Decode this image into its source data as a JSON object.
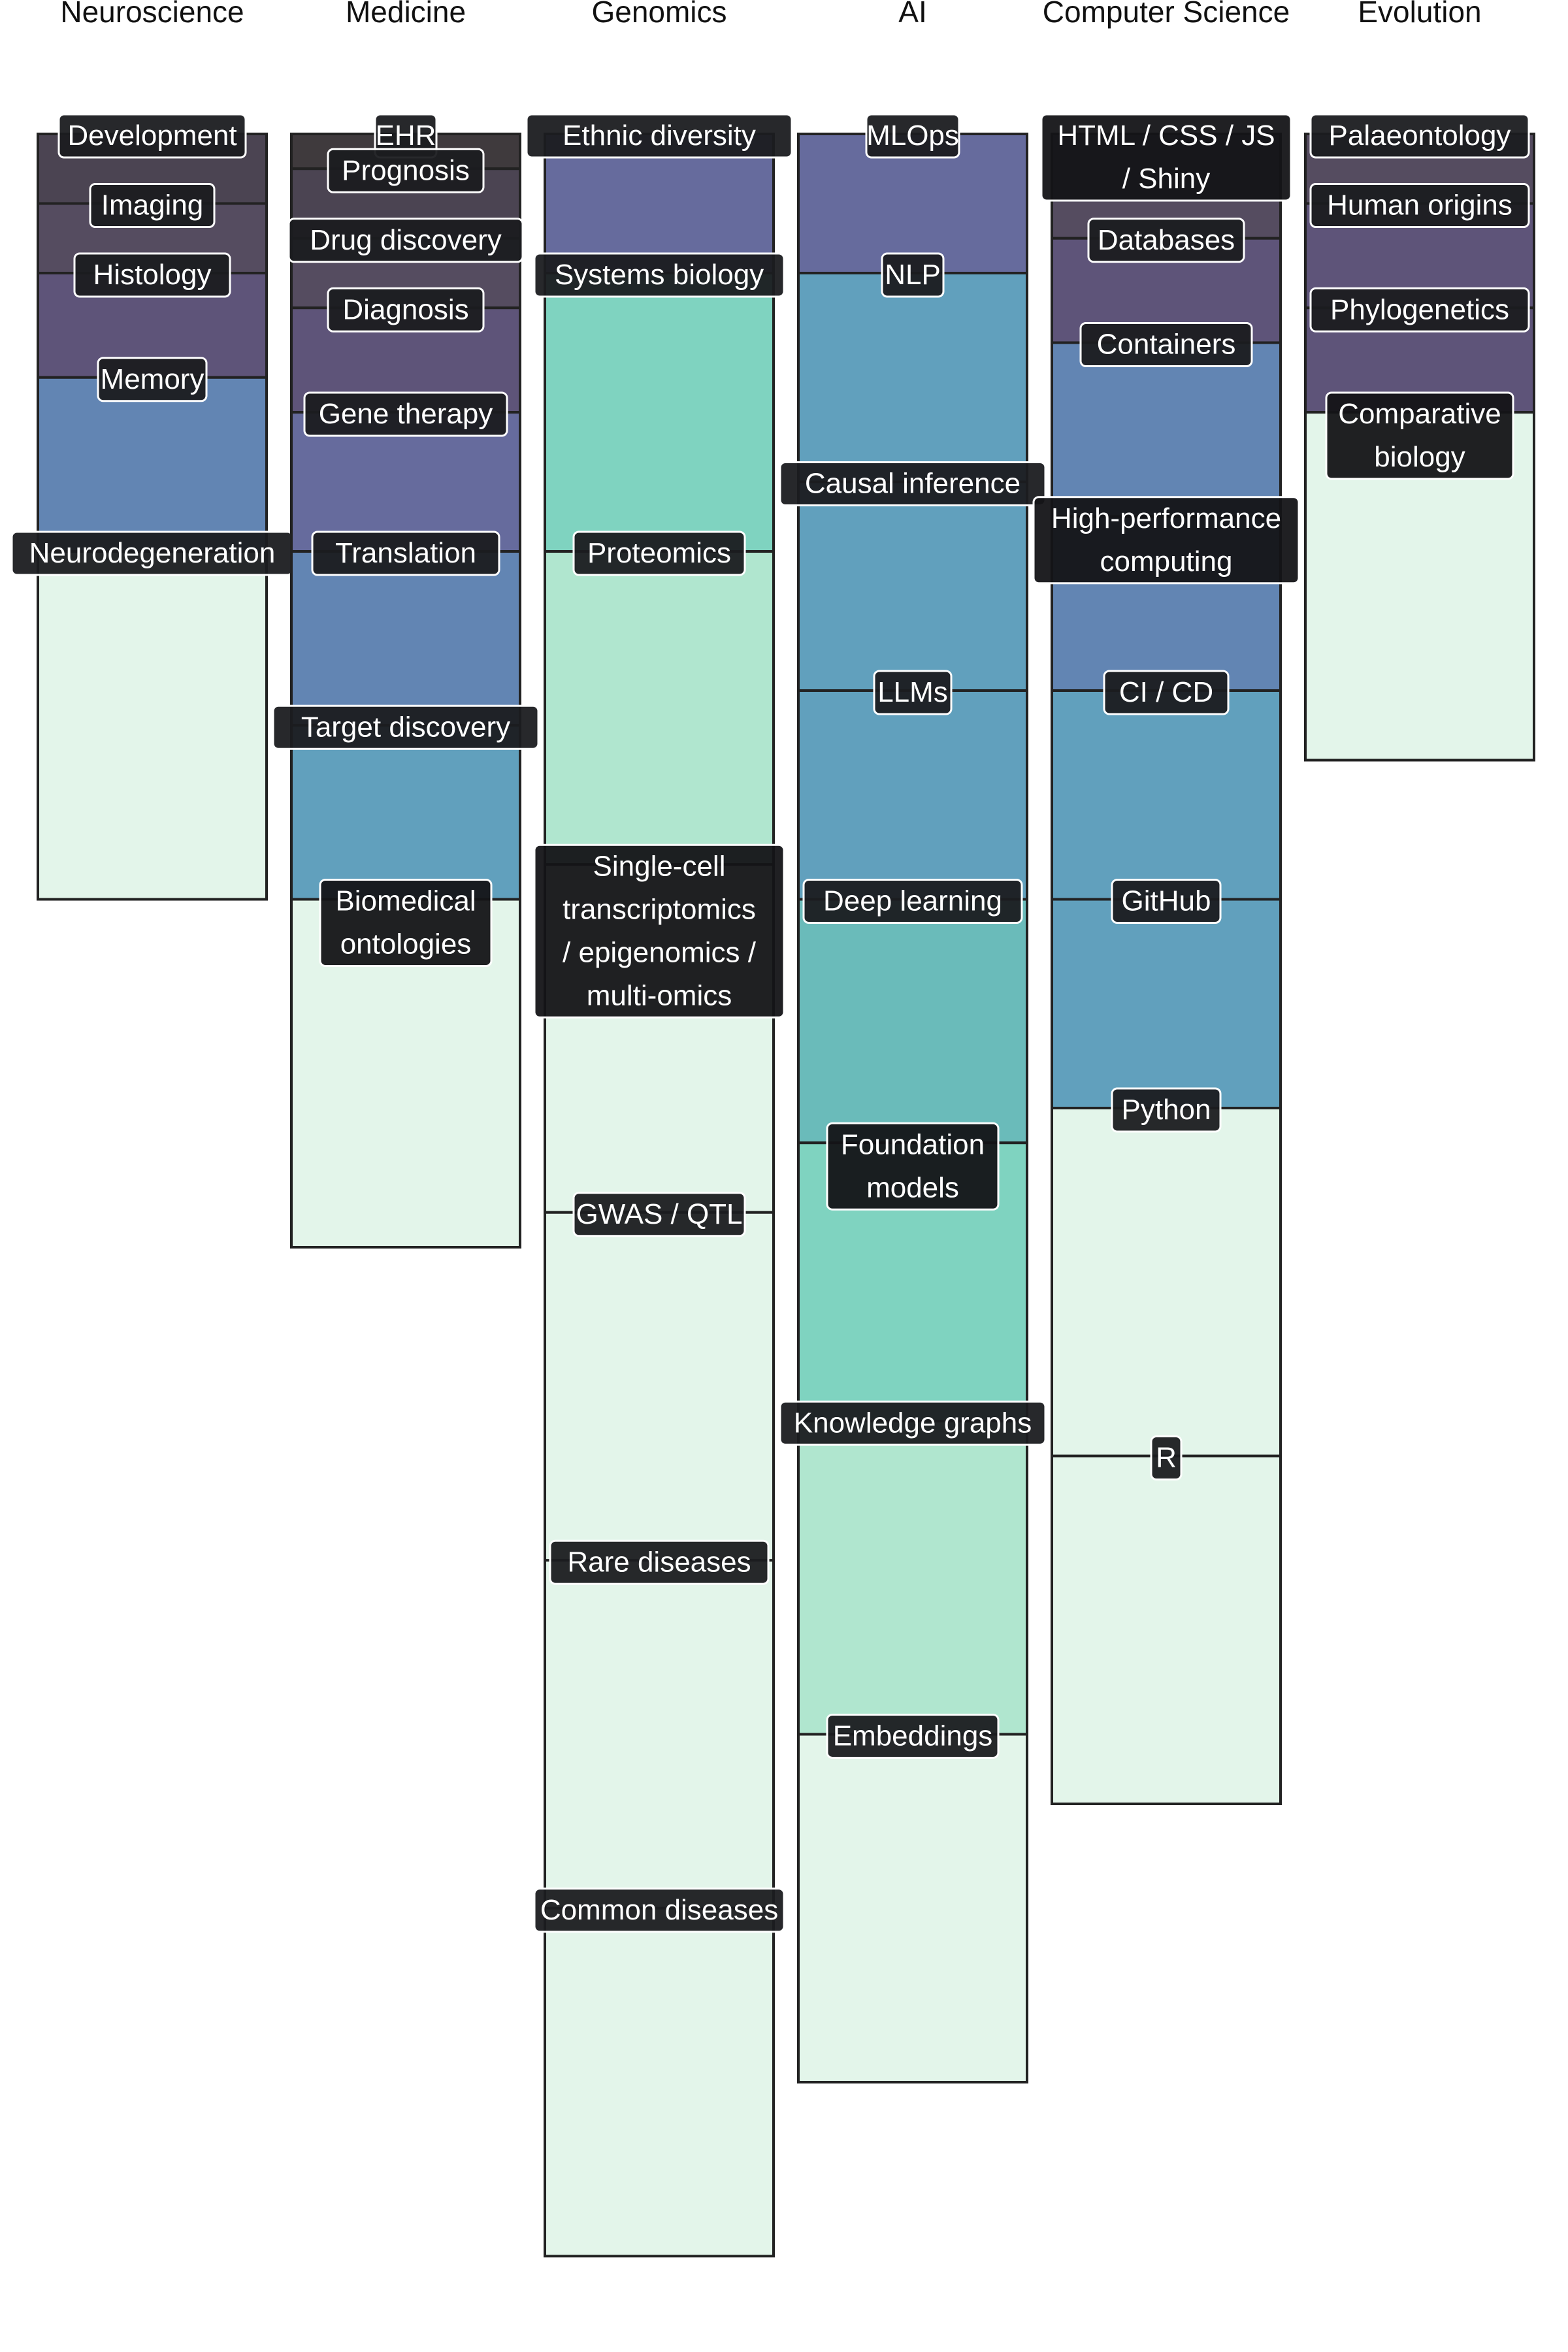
{
  "chart_data": {
    "type": "bar",
    "categories": [
      "Neuroscience",
      "Medicine",
      "Genomics",
      "AI",
      "Computer Science",
      "Evolution"
    ],
    "columns": [
      {
        "name": "Neuroscience",
        "segments": [
          {
            "label": "Development",
            "value": 1,
            "color": "#4b4452"
          },
          {
            "label": "Imaging",
            "value": 1,
            "color": "#554c60"
          },
          {
            "label": "Histology",
            "value": 1.5,
            "color": "#5e5479"
          },
          {
            "label": "Memory",
            "value": 2.5,
            "color": "#6285b3"
          },
          {
            "label": "Neurodegeneration",
            "value": 5,
            "color": "#e3f5ea"
          }
        ]
      },
      {
        "name": "Medicine",
        "segments": [
          {
            "label": "EHR",
            "value": 0.5,
            "color": "#3f3a3d"
          },
          {
            "label": "Prognosis",
            "value": 1,
            "color": "#4b4452"
          },
          {
            "label": "Drug discovery",
            "value": 1,
            "color": "#554c60"
          },
          {
            "label": "Diagnosis",
            "value": 1.5,
            "color": "#5e5479"
          },
          {
            "label": "Gene therapy",
            "value": 2,
            "color": "#666b9d"
          },
          {
            "label": "Translation",
            "value": 2.5,
            "color": "#6285b3"
          },
          {
            "label": "Target discovery",
            "value": 2.5,
            "color": "#61a0bd"
          },
          {
            "label": "Biomedical ontologies",
            "value": 5,
            "color": "#e3f5ea"
          }
        ]
      },
      {
        "name": "Genomics",
        "segments": [
          {
            "label": "Ethnic diversity",
            "value": 2,
            "color": "#666b9d"
          },
          {
            "label": "Systems biology",
            "value": 4,
            "color": "#7fd3c0"
          },
          {
            "label": "Proteomics",
            "value": 4.5,
            "color": "#b0e6cf"
          },
          {
            "label": "Single-cell transcriptomics / epigenomics / multi-omics",
            "value": 5,
            "color": "#e3f5ea"
          },
          {
            "label": "GWAS / QTL",
            "value": 5,
            "color": "#e3f5ea"
          },
          {
            "label": "Rare diseases",
            "value": 5,
            "color": "#e3f5ea"
          },
          {
            "label": "Common diseases",
            "value": 5,
            "color": "#e3f5ea"
          }
        ]
      },
      {
        "name": "AI",
        "segments": [
          {
            "label": "MLOps",
            "value": 2,
            "color": "#666b9d"
          },
          {
            "label": "NLP",
            "value": 3,
            "color": "#61a0bd"
          },
          {
            "label": "Causal inference",
            "value": 3,
            "color": "#61a0bd"
          },
          {
            "label": "LLMs",
            "value": 3,
            "color": "#61a0bd"
          },
          {
            "label": "Deep learning",
            "value": 3.5,
            "color": "#6abbba"
          },
          {
            "label": "Foundation models",
            "value": 4,
            "color": "#7fd3c0"
          },
          {
            "label": "Knowledge graphs",
            "value": 4.5,
            "color": "#b0e6cf"
          },
          {
            "label": "Embeddings",
            "value": 5,
            "color": "#e3f5ea"
          }
        ]
      },
      {
        "name": "Computer Science",
        "segments": [
          {
            "label": "HTML / CSS / JS / Shiny",
            "value": 1.5,
            "color": "#554c60"
          },
          {
            "label": "Databases",
            "value": 1.5,
            "color": "#5e5479"
          },
          {
            "label": "Containers",
            "value": 2.5,
            "color": "#6285b3"
          },
          {
            "label": "High-performance computing",
            "value": 2.5,
            "color": "#6285b3"
          },
          {
            "label": "CI / CD",
            "value": 3,
            "color": "#61a0bd"
          },
          {
            "label": "GitHub",
            "value": 3,
            "color": "#61a0bd"
          },
          {
            "label": "Python",
            "value": 5,
            "color": "#e3f5ea"
          },
          {
            "label": "R",
            "value": 5,
            "color": "#e3f5ea"
          }
        ]
      },
      {
        "name": "Evolution",
        "segments": [
          {
            "label": "Palaeontology",
            "value": 1,
            "color": "#554c60"
          },
          {
            "label": "Human origins",
            "value": 1.5,
            "color": "#5e5479"
          },
          {
            "label": "Phylogenetics",
            "value": 1.5,
            "color": "#5e5479"
          },
          {
            "label": "Comparative biology",
            "value": 5,
            "color": "#e3f5ea"
          }
        ]
      }
    ]
  }
}
